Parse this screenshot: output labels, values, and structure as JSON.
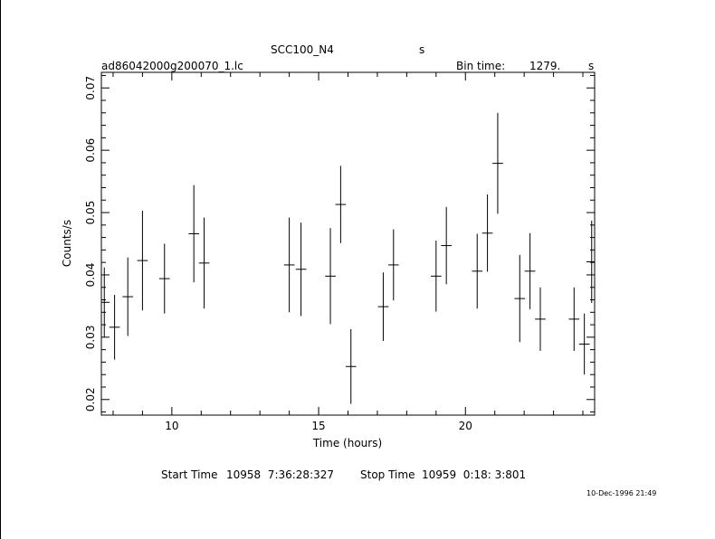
{
  "header": {
    "title": "SCC100_N4",
    "title_unit": "s",
    "file_name": "ad86042000g200070_1.lc",
    "bin_time_label": "Bin time:",
    "bin_time_value": "1279.",
    "bin_time_unit": "s"
  },
  "footer": {
    "start_label": "Start Time",
    "start_value": "10958  7:36:28:327",
    "stop_label": "Stop Time",
    "stop_value": "10959  0:18: 3:801",
    "timestamp": "10-Dec-1996 21:49"
  },
  "chart_data": {
    "type": "scatter",
    "xlabel": "Time (hours)",
    "ylabel": "Counts/s",
    "xlim": [
      7.6,
      24.4
    ],
    "ylim": [
      0.0175,
      0.0725
    ],
    "x_ticks": [
      10,
      15,
      20
    ],
    "y_ticks": [
      0.02,
      0.03,
      0.04,
      0.05,
      0.06,
      0.07
    ],
    "x_tick_labels": [
      "10",
      "15",
      "20"
    ],
    "y_tick_labels": [
      "0.02",
      "0.03",
      "0.04",
      "0.05",
      "0.06",
      "0.07"
    ],
    "points": [
      {
        "x": 7.7,
        "y": 0.0356,
        "xerr": 0.18,
        "yerr": 0.0056
      },
      {
        "x": 8.05,
        "y": 0.0316,
        "xerr": 0.18,
        "yerr": 0.0052
      },
      {
        "x": 8.5,
        "y": 0.0365,
        "xerr": 0.18,
        "yerr": 0.0063
      },
      {
        "x": 9.0,
        "y": 0.0423,
        "xerr": 0.18,
        "yerr": 0.008
      },
      {
        "x": 9.75,
        "y": 0.0394,
        "xerr": 0.18,
        "yerr": 0.0056
      },
      {
        "x": 10.75,
        "y": 0.0466,
        "xerr": 0.18,
        "yerr": 0.0078
      },
      {
        "x": 11.1,
        "y": 0.0419,
        "xerr": 0.18,
        "yerr": 0.0073
      },
      {
        "x": 14.0,
        "y": 0.0416,
        "xerr": 0.18,
        "yerr": 0.0076
      },
      {
        "x": 14.4,
        "y": 0.0409,
        "xerr": 0.18,
        "yerr": 0.0075
      },
      {
        "x": 15.4,
        "y": 0.0398,
        "xerr": 0.18,
        "yerr": 0.0077
      },
      {
        "x": 15.75,
        "y": 0.0513,
        "xerr": 0.18,
        "yerr": 0.0062
      },
      {
        "x": 16.1,
        "y": 0.0253,
        "xerr": 0.18,
        "yerr": 0.006
      },
      {
        "x": 17.2,
        "y": 0.0349,
        "xerr": 0.18,
        "yerr": 0.0055
      },
      {
        "x": 17.55,
        "y": 0.0416,
        "xerr": 0.18,
        "yerr": 0.0057
      },
      {
        "x": 19.0,
        "y": 0.0398,
        "xerr": 0.18,
        "yerr": 0.0057
      },
      {
        "x": 19.35,
        "y": 0.0447,
        "xerr": 0.18,
        "yerr": 0.0062
      },
      {
        "x": 20.4,
        "y": 0.0406,
        "xerr": 0.18,
        "yerr": 0.006
      },
      {
        "x": 20.75,
        "y": 0.0467,
        "xerr": 0.18,
        "yerr": 0.0062
      },
      {
        "x": 21.1,
        "y": 0.0579,
        "xerr": 0.18,
        "yerr": 0.0081
      },
      {
        "x": 21.85,
        "y": 0.0362,
        "xerr": 0.18,
        "yerr": 0.007
      },
      {
        "x": 22.2,
        "y": 0.0406,
        "xerr": 0.18,
        "yerr": 0.0061
      },
      {
        "x": 22.55,
        "y": 0.0329,
        "xerr": 0.18,
        "yerr": 0.0051
      },
      {
        "x": 23.7,
        "y": 0.0329,
        "xerr": 0.18,
        "yerr": 0.0051
      },
      {
        "x": 24.05,
        "y": 0.0289,
        "xerr": 0.18,
        "yerr": 0.0049
      },
      {
        "x": 24.3,
        "y": 0.0421,
        "xerr": 0.18,
        "yerr": 0.0066
      }
    ]
  }
}
